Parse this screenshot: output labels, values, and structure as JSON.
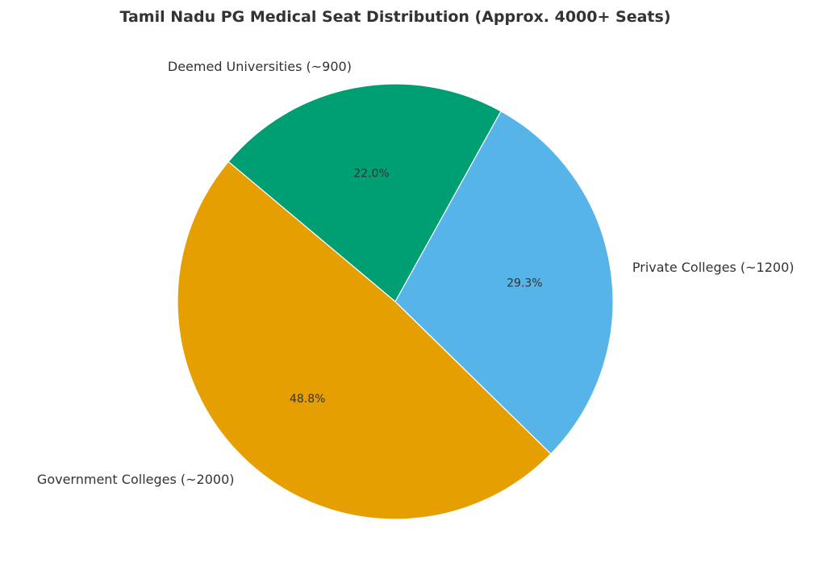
{
  "chart_data": {
    "type": "pie",
    "title": "Tamil Nadu PG Medical Seat Distribution (Approx. 4000+ Seats)",
    "start_angle_deg": 140,
    "direction": "counterclockwise",
    "slices": [
      {
        "label": "Government Colleges (~2000)",
        "value": 2000,
        "percent": "48.8%",
        "color": "#E69F00"
      },
      {
        "label": "Private Colleges (~1200)",
        "value": 1200,
        "percent": "29.3%",
        "color": "#56B4E9"
      },
      {
        "label": "Deemed Universities (~900)",
        "value": 900,
        "percent": "22.0%",
        "color": "#009E73"
      }
    ]
  }
}
